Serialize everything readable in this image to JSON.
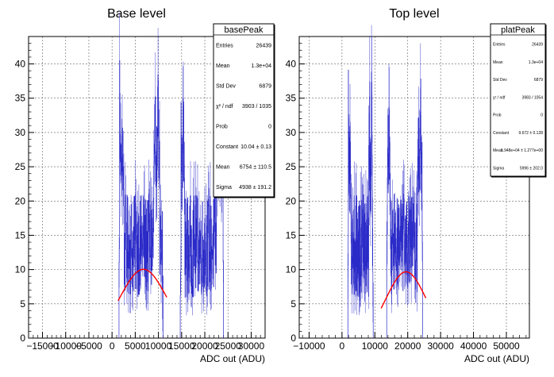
{
  "chart_data": [
    {
      "type": "histogram",
      "title": "Base level",
      "xlabel": "ADC out (ADU)",
      "ylabel": "",
      "xlim": [
        -18000,
        33000
      ],
      "ylim": [
        0,
        44
      ],
      "xticks_labels": [
        "−15000",
        "−10000",
        "−5000",
        "0",
        "5000",
        "10000",
        "15000",
        "20000",
        "25000",
        "30000"
      ],
      "xticks": [
        -15000,
        -10000,
        -5000,
        0,
        5000,
        10000,
        15000,
        20000,
        25000,
        30000
      ],
      "yticks": [
        0,
        5,
        10,
        15,
        20,
        25,
        30,
        35,
        40
      ],
      "grid": true,
      "histogram_color": "#2b2bc9",
      "fit_color": "#ff0000",
      "hist_clusters": [
        {
          "range": [
            1500,
            11000
          ],
          "peaks": [
            [
              1600,
              41
            ],
            [
              2200,
              32
            ],
            [
              9300,
              38
            ],
            [
              9900,
              40
            ]
          ],
          "floor": 6,
          "ceil": 21
        },
        {
          "range": [
            14700,
            24000
          ],
          "peaks": [
            [
              14800,
              35
            ],
            [
              15300,
              36
            ],
            [
              22800,
              33
            ],
            [
              23400,
              39
            ],
            [
              23900,
              41
            ]
          ],
          "floor": 6,
          "ceil": 21
        }
      ],
      "fit": {
        "constant": 10.04,
        "mean": 6754,
        "sigma": 4938,
        "x_range": [
          1300,
          11800
        ]
      },
      "stats_box": {
        "name": "basePeak",
        "rows": [
          {
            "label": "Entries",
            "value": "26439"
          },
          {
            "label": "Mean",
            "value": "1.3e+04"
          },
          {
            "label": "Std Dev",
            "value": "6879"
          },
          {
            "label": "χ² / ndf",
            "value": "3903 / 1035"
          },
          {
            "label": "Prob",
            "value": "0"
          },
          {
            "label": "Constant",
            "value": "10.04 ± 0.13"
          },
          {
            "label": "Mean",
            "value": "6754 ± 110.5"
          },
          {
            "label": "Sigma",
            "value": "4938 ± 191.2"
          }
        ]
      }
    },
    {
      "type": "histogram",
      "title": "Top level",
      "xlabel": "ADC out (ADU)",
      "ylabel": "",
      "xlim": [
        -13000,
        57000
      ],
      "ylim": [
        0,
        44
      ],
      "xticks_labels": [
        "−10000",
        "0",
        "10000",
        "20000",
        "30000",
        "40000",
        "50000"
      ],
      "xticks": [
        -10000,
        0,
        10000,
        20000,
        30000,
        40000,
        50000
      ],
      "yticks": [
        0,
        5,
        10,
        15,
        20,
        25,
        30,
        35,
        40
      ],
      "grid": true,
      "histogram_color": "#2b2bc9",
      "fit_color": "#ff0000",
      "hist_clusters": [
        {
          "range": [
            1800,
            9500
          ],
          "peaks": [
            [
              1900,
              41
            ],
            [
              2400,
              32
            ],
            [
              8400,
              38
            ],
            [
              9000,
              40
            ]
          ],
          "floor": 6,
          "ceil": 21
        },
        {
          "range": [
            13600,
            24500
          ],
          "peaks": [
            [
              13700,
              35
            ],
            [
              14300,
              36
            ],
            [
              23300,
              33
            ],
            [
              23900,
              39
            ],
            [
              24400,
              41
            ]
          ],
          "floor": 6,
          "ceil": 21
        }
      ],
      "fit": {
        "constant": 9.672,
        "mean": 19480,
        "sigma": 5996,
        "x_range": [
          11900,
          25500
        ]
      },
      "stats_box": {
        "name": "platPeak",
        "rows": [
          {
            "label": "Entries",
            "value": "26439"
          },
          {
            "label": "Mean",
            "value": "1.3e+04"
          },
          {
            "label": "Std Dev",
            "value": "6879"
          },
          {
            "label": "χ² / ndf",
            "value": "3983 / 1054"
          },
          {
            "label": "Prob",
            "value": "0"
          },
          {
            "label": "Constant",
            "value": "9.672 ± 0.128"
          },
          {
            "label": "Mean",
            "value": "1.948e+04 ± 1.277e+00"
          },
          {
            "label": "Sigma",
            "value": "5996 ± 202.0"
          }
        ]
      }
    }
  ]
}
